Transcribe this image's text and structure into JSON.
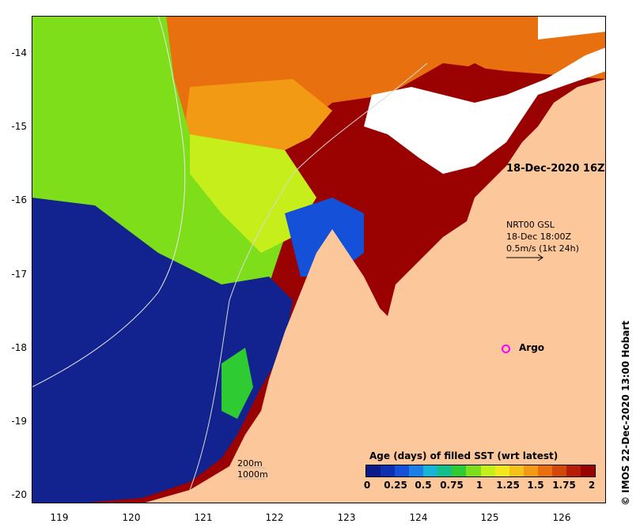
{
  "axes": {
    "y_ticks": [
      "-14",
      "-15",
      "-16",
      "-17",
      "-18",
      "-19",
      "-20"
    ],
    "x_ticks": [
      "119",
      "120",
      "121",
      "122",
      "123",
      "124",
      "125",
      "126"
    ]
  },
  "annotations": {
    "timestamp": "18-Dec-2020 16Z",
    "vector_line1": "NRT00 GSL",
    "vector_line2": "18-Dec 18:00Z",
    "vector_line3": "0.5m/s (1kt 24h)",
    "argo_label": "Argo",
    "depth_200": "200m",
    "depth_1000": "1000m",
    "side_caption": "© IMOS 22-Dec-2020 13:00 Hobart"
  },
  "colorbar": {
    "title": "Age (days) of filled SST (wrt latest)",
    "labels": [
      "0",
      "0.25",
      "0.5",
      "0.75",
      "1",
      "1.25",
      "1.5",
      "1.75",
      "2"
    ],
    "colors": [
      "#0a1a8a",
      "#0d2fb0",
      "#1450d8",
      "#1a7fe6",
      "#16b5d8",
      "#14c08a",
      "#2ecc32",
      "#7ede1a",
      "#c6ee1a",
      "#f2e81a",
      "#f5c21a",
      "#f39a14",
      "#e8700e",
      "#d2480a",
      "#b81e06",
      "#9a0202"
    ]
  },
  "colors": {
    "land": "#fcc79a",
    "deep_blue": "#12238f",
    "cloud": "#ffffff"
  }
}
